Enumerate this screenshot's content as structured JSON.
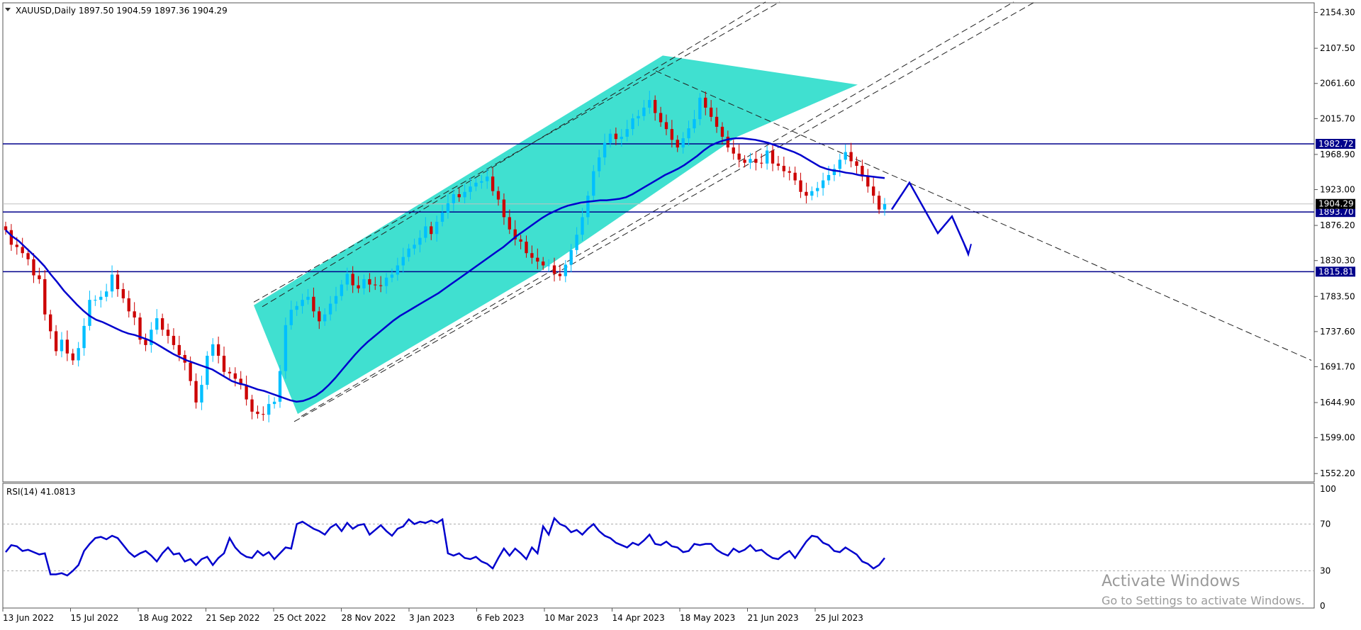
{
  "chart_data": {
    "type": "candlestick",
    "symbol_header": "XAUUSD,Daily  1897.50 1904.59 1897.36 1904.29",
    "price_axis": {
      "ticks": [
        "2154.30",
        "2107.50",
        "2061.60",
        "2015.70",
        "1968.90",
        "1923.00",
        "1876.20",
        "1830.30",
        "1783.50",
        "1737.60",
        "1691.70",
        "1644.90",
        "1599.00",
        "1552.20"
      ],
      "range": [
        1545,
        2165
      ]
    },
    "time_axis": {
      "ticks": [
        "13 Jun 2022",
        "15 Jul 2022",
        "18 Aug 2022",
        "21 Sep 2022",
        "25 Oct 2022",
        "28 Nov 2022",
        "3 Jan 2023",
        "6 Feb 2023",
        "10 Mar 2023",
        "14 Apr 2023",
        "18 May 2023",
        "21 Jun 2023",
        "25 Jul 2023"
      ],
      "bar_span": [
        0,
        291
      ]
    },
    "current_price": {
      "label": "1904.29",
      "value": 1904.29,
      "color": "#000000"
    },
    "horizontal_levels": [
      {
        "label": "1982.72",
        "value": 1982.72,
        "color": "#00008b"
      },
      {
        "label": "1893.70",
        "value": 1893.7,
        "color": "#00008b"
      },
      {
        "label": "1815.81",
        "value": 1815.81,
        "color": "#00008b"
      }
    ],
    "close_series": [
      1870,
      1851,
      1848,
      1840,
      1832,
      1811,
      1806,
      1760,
      1738,
      1712,
      1727,
      1709,
      1700,
      1716,
      1745,
      1779,
      1779,
      1783,
      1790,
      1812,
      1793,
      1781,
      1764,
      1756,
      1727,
      1720,
      1740,
      1755,
      1740,
      1732,
      1720,
      1707,
      1697,
      1673,
      1645,
      1668,
      1706,
      1721,
      1706,
      1685,
      1683,
      1676,
      1668,
      1649,
      1633,
      1630,
      1629,
      1643,
      1646,
      1686,
      1746,
      1766,
      1771,
      1779,
      1783,
      1764,
      1751,
      1760,
      1774,
      1784,
      1799,
      1813,
      1798,
      1794,
      1806,
      1799,
      1798,
      1797,
      1808,
      1812,
      1824,
      1835,
      1846,
      1851,
      1860,
      1875,
      1865,
      1881,
      1893,
      1905,
      1917,
      1913,
      1920,
      1927,
      1932,
      1934,
      1940,
      1921,
      1910,
      1887,
      1871,
      1858,
      1855,
      1840,
      1834,
      1829,
      1824,
      1824,
      1813,
      1810,
      1825,
      1844,
      1864,
      1887,
      1915,
      1947,
      1965,
      1984,
      1996,
      1989,
      1992,
      2002,
      2016,
      2019,
      2030,
      2040,
      2023,
      2011,
      2002,
      1988,
      1978,
      1990,
      2003,
      2015,
      2043,
      2030,
      2018,
      2005,
      1992,
      1978,
      1970,
      1962,
      1958,
      1963,
      1958,
      1957,
      1974,
      1957,
      1954,
      1947,
      1945,
      1935,
      1920,
      1915,
      1921,
      1925,
      1935,
      1942,
      1950,
      1962,
      1972,
      1960,
      1954,
      1940,
      1927,
      1915,
      1897,
      1904
    ],
    "ma_series": [
      1870,
      1862,
      1856,
      1848,
      1840,
      1832,
      1823,
      1812,
      1802,
      1791,
      1782,
      1773,
      1765,
      1758,
      1753,
      1750,
      1746,
      1742,
      1738,
      1735,
      1733,
      1730,
      1727,
      1723,
      1718,
      1713,
      1708,
      1704,
      1700,
      1697,
      1694,
      1691,
      1688,
      1683,
      1678,
      1673,
      1670,
      1668,
      1665,
      1662,
      1660,
      1657,
      1654,
      1651,
      1648,
      1646,
      1647,
      1650,
      1654,
      1660,
      1668,
      1677,
      1687,
      1697,
      1707,
      1716,
      1724,
      1731,
      1738,
      1745,
      1752,
      1758,
      1763,
      1768,
      1773,
      1778,
      1783,
      1788,
      1794,
      1800,
      1806,
      1812,
      1818,
      1824,
      1830,
      1836,
      1842,
      1848,
      1855,
      1862,
      1868,
      1874,
      1880,
      1886,
      1891,
      1895,
      1899,
      1902,
      1904,
      1906,
      1907,
      1908,
      1909,
      1909,
      1910,
      1911,
      1913,
      1917,
      1922,
      1927,
      1932,
      1937,
      1942,
      1946,
      1950,
      1955,
      1961,
      1967,
      1974,
      1980,
      1984,
      1987,
      1989,
      1990,
      1990,
      1989,
      1988,
      1986,
      1984,
      1981,
      1978,
      1975,
      1972,
      1968,
      1963,
      1958,
      1953,
      1950,
      1948,
      1947,
      1945,
      1944,
      1942,
      1941,
      1940,
      1939,
      1938
    ],
    "rsi": {
      "label": "RSI(14) 41.0813",
      "levels": [
        30,
        70
      ],
      "axis_ticks": [
        "100",
        "70",
        "30",
        "0"
      ],
      "values": [
        46,
        52,
        51,
        47,
        48,
        46,
        44,
        45,
        27,
        27,
        28,
        26,
        30,
        35,
        47,
        53,
        58,
        59,
        57,
        60,
        58,
        52,
        46,
        42,
        45,
        47,
        43,
        38,
        45,
        50,
        44,
        45,
        38,
        40,
        35,
        40,
        42,
        35,
        41,
        45,
        58,
        50,
        45,
        42,
        41,
        47,
        43,
        46,
        40,
        45,
        50,
        49,
        70,
        72,
        69,
        66,
        64,
        61,
        67,
        70,
        64,
        71,
        66,
        69,
        70,
        61,
        65,
        69,
        64,
        60,
        66,
        68,
        74,
        70,
        72,
        71,
        73,
        71,
        74,
        45,
        43,
        45,
        41,
        40,
        42,
        38,
        36,
        32,
        41,
        49,
        43,
        49,
        45,
        40,
        50,
        45,
        68,
        61,
        75,
        70,
        68,
        63,
        65,
        61,
        66,
        70,
        64,
        60,
        58,
        54,
        52,
        50,
        54,
        52,
        56,
        61,
        53,
        52,
        55,
        51,
        50,
        46,
        47,
        53,
        52,
        53,
        53,
        48,
        45,
        43,
        49,
        46,
        48,
        52,
        47,
        48,
        44,
        41,
        40,
        44,
        47,
        41,
        48,
        55,
        60,
        59,
        54,
        52,
        47,
        46,
        50,
        47,
        44,
        38,
        36,
        32,
        35,
        41
      ],
      "range": [
        0,
        100
      ]
    },
    "annotations": {
      "watermark_line1": "Activate Windows",
      "watermark_line2": "Go to Settings to activate Windows."
    },
    "colors": {
      "bull": "#00bfff",
      "bear": "#cc0000",
      "ma": "#0000cd",
      "channel_fill": "#40e0d0",
      "level": "#00008b",
      "forecast": "#0000cd",
      "trendline": "#222222"
    }
  }
}
